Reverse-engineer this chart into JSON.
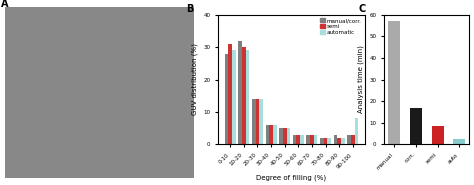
{
  "categories": [
    "0-10",
    "10-20",
    "20-30",
    "30-40",
    "40-50",
    "50-60",
    "60-70",
    "70-80",
    "80-90",
    "90-100"
  ],
  "manual_corr": [
    28,
    32,
    14,
    6,
    5,
    3,
    3,
    2,
    3,
    3
  ],
  "semi": [
    31,
    30,
    14,
    6,
    5,
    3,
    3,
    2,
    2,
    3
  ],
  "automatic": [
    29,
    29,
    14,
    6,
    5,
    3,
    3,
    2,
    2,
    8
  ],
  "bar_colors_B": [
    "#7f7f7f",
    "#cc3333",
    "#aadddd"
  ],
  "legend_labels": [
    "manual/corr.",
    "semi",
    "automatic"
  ],
  "xlabel_B": "Degree of filling (%)",
  "ylabel_B": "GUV distribution (%)",
  "ylim_B": [
    0,
    40
  ],
  "yticks_B": [
    0,
    10,
    20,
    30,
    40
  ],
  "C_categories": [
    "manual",
    "corr.",
    "semi",
    "auto"
  ],
  "C_values": [
    57,
    17,
    8.5,
    2.5
  ],
  "C_colors": [
    "#aaaaaa",
    "#1a1a1a",
    "#cc2222",
    "#88cccc"
  ],
  "ylabel_C": "Analysis time (min)",
  "ylim_C": [
    0,
    60
  ],
  "yticks_C": [
    0,
    10,
    20,
    30,
    40,
    50,
    60
  ]
}
